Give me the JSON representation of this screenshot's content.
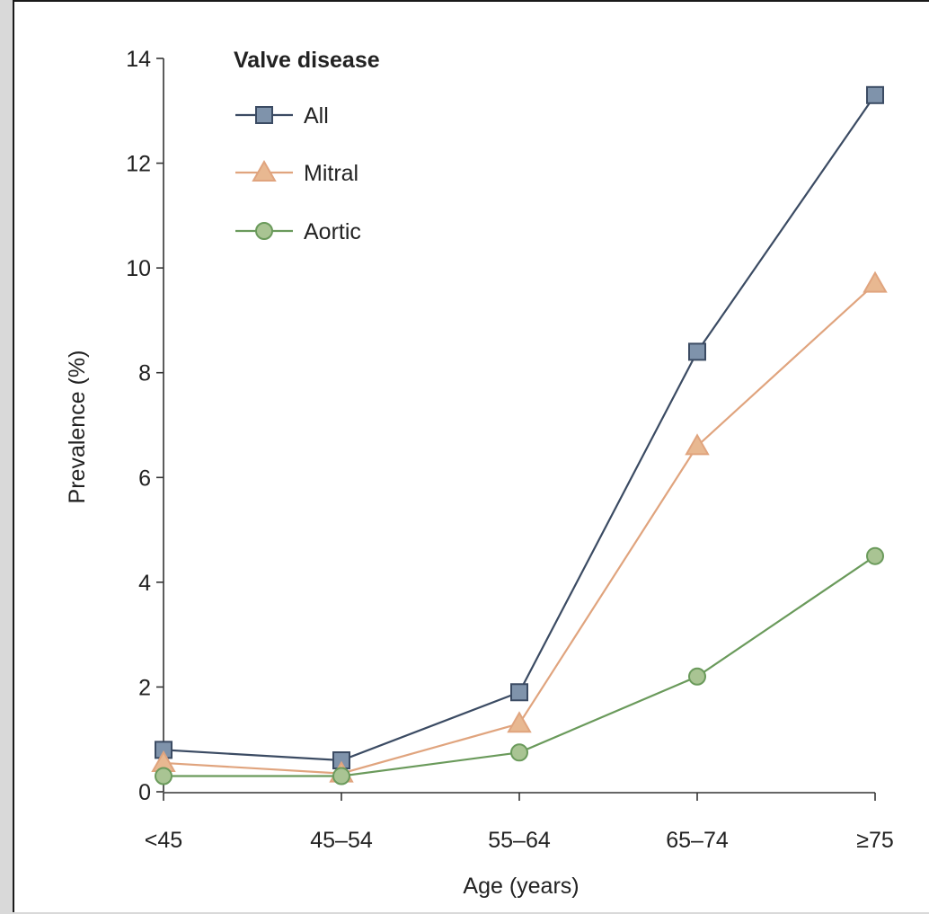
{
  "chart_data": {
    "type": "line",
    "title": "",
    "xlabel": "Age (years)",
    "ylabel": "Prevalence (%)",
    "categories": [
      "<45",
      "45–54",
      "55–64",
      "65–74",
      "≥75"
    ],
    "ylim": [
      0,
      14
    ],
    "yticks": [
      "0",
      "2",
      "4",
      "6",
      "8",
      "10",
      "12",
      "14"
    ],
    "grid": false,
    "legend": {
      "title": "Valve disease",
      "placement": "top-left"
    },
    "series": [
      {
        "name": "All",
        "marker": "square",
        "color": "#3b4b63",
        "fill": "#7f93ab",
        "values": [
          0.8,
          0.6,
          1.9,
          8.4,
          13.3
        ]
      },
      {
        "name": "Mitral",
        "marker": "triangle",
        "color": "#e0a47e",
        "fill": "#e8b891",
        "values": [
          0.55,
          0.35,
          1.3,
          6.6,
          9.7
        ]
      },
      {
        "name": "Aortic",
        "marker": "circle",
        "color": "#6a9a5b",
        "fill": "#a9c493",
        "values": [
          0.3,
          0.3,
          0.75,
          2.2,
          4.5
        ]
      }
    ]
  }
}
